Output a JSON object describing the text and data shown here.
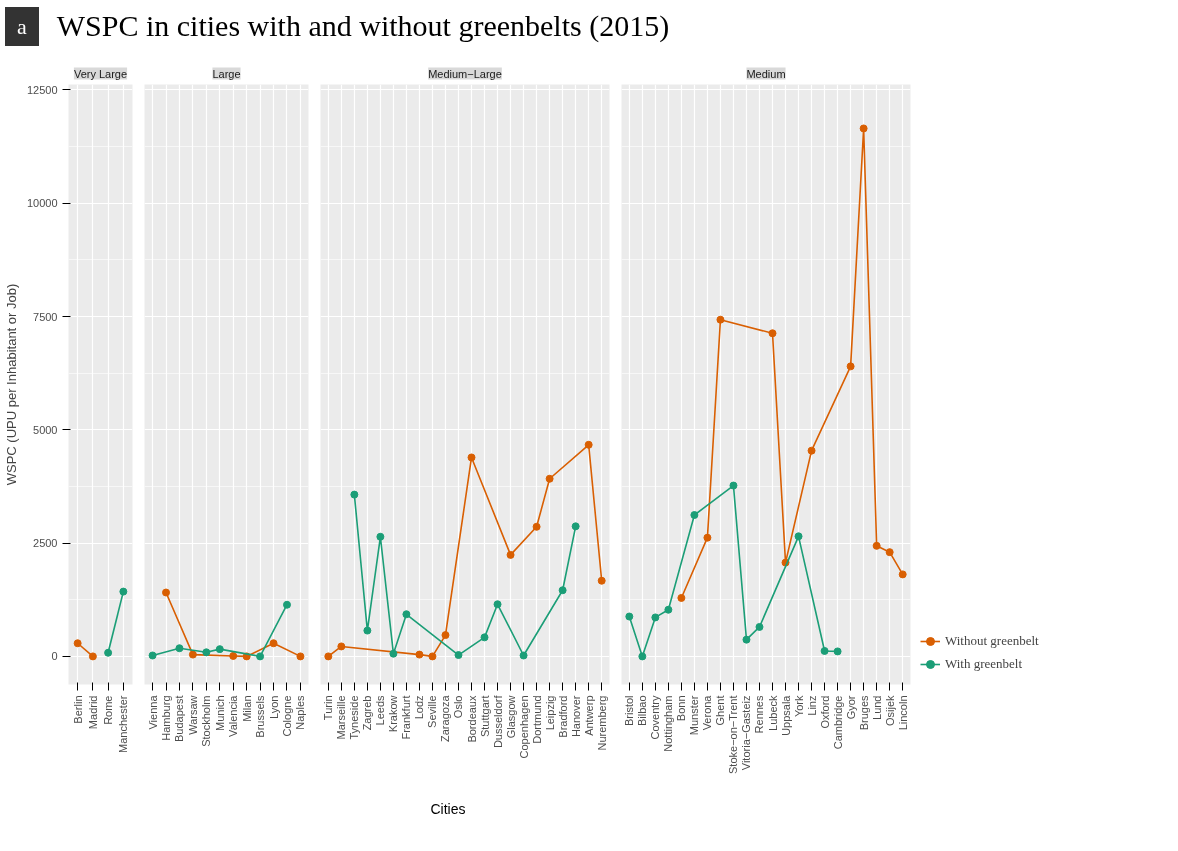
{
  "chart_data": [
    {
      "type": "line",
      "title": "WSPC in cities with and without greenbelts (2015)",
      "annotations": [
        "a"
      ],
      "subtitle": "Very Large",
      "ylabel": "WSPC (UPU per Inhabitant or Job)",
      "categories": [
        "Berlin",
        "Madrid",
        "Rome",
        "Manchester"
      ],
      "series": [
        {
          "color": "#d95f02",
          "values": [
            290,
            0,
            null,
            null
          ]
        },
        {
          "color": "#1b9e77",
          "values": [
            null,
            null,
            80,
            1430
          ]
        }
      ],
      "ylim": [
        -620,
        12620
      ],
      "yticks": [
        0,
        2500,
        5000,
        7500,
        10000,
        12500
      ],
      "grid": true,
      "marker": "circle"
    },
    {
      "type": "line",
      "subtitle": "Large",
      "categories": [
        "Vienna",
        "Hamburg",
        "Budapest",
        "Warsaw",
        "Stockholm",
        "Munich",
        "Valencia",
        "Milan",
        "Brussels",
        "Lyon",
        "Cologne",
        "Naples"
      ],
      "series": [
        {
          "color": "#d95f02",
          "values": [
            null,
            1410,
            null,
            40,
            null,
            null,
            10,
            0,
            null,
            290,
            null,
            0
          ]
        },
        {
          "color": "#1b9e77",
          "values": [
            20,
            null,
            180,
            null,
            90,
            160,
            null,
            null,
            0,
            null,
            1140,
            null
          ]
        }
      ],
      "ylim": [
        -620,
        12620
      ],
      "yticks": [
        0,
        2500,
        5000,
        7500,
        10000,
        12500
      ],
      "grid": true,
      "marker": "circle",
      "tick_labels": "x"
    },
    {
      "type": "line",
      "subtitle": "Medium−Large",
      "xlabel": "Cities",
      "categories": [
        "Turin",
        "Marseille",
        "Tyneside",
        "Zagreb",
        "Leeds",
        "Krakow",
        "Frankfurt",
        "Lodz",
        "Seville",
        "Zaragoza",
        "Oslo",
        "Bordeaux",
        "Stuttgart",
        "Dusseldorf",
        "Glasgow",
        "Copenhagen",
        "Dortmund",
        "Leipzig",
        "Bradford",
        "Hanover",
        "Antwerp",
        "Nuremberg"
      ],
      "series": [
        {
          "color": "#d95f02",
          "values": [
            0,
            220,
            null,
            null,
            null,
            null,
            null,
            40,
            0,
            470,
            null,
            4390,
            null,
            null,
            2240,
            null,
            2860,
            3920,
            null,
            null,
            4670,
            1670
          ]
        },
        {
          "color": "#1b9e77",
          "values": [
            null,
            null,
            3570,
            570,
            2640,
            60,
            930,
            null,
            null,
            null,
            30,
            null,
            420,
            1150,
            null,
            20,
            null,
            null,
            1460,
            2870,
            null,
            null
          ]
        }
      ],
      "ylim": [
        -620,
        12620
      ],
      "yticks": [
        0,
        2500,
        5000,
        7500,
        10000,
        12500
      ],
      "grid": true,
      "marker": "circle",
      "tick_labels": "x"
    },
    {
      "type": "line",
      "subtitle": "Medium",
      "categories": [
        "Bristol",
        "Bilbao",
        "Coventry",
        "Nottingham",
        "Bonn",
        "Munster",
        "Verona",
        "Ghent",
        "Stoke−on−Trent",
        "Vitoria−Gasteiz",
        "Rennes",
        "Lubeck",
        "Uppsala",
        "York",
        "Linz",
        "Oxford",
        "Cambridge",
        "Gyor",
        "Bruges",
        "Lund",
        "Osijek",
        "Lincoln"
      ],
      "series": [
        {
          "name": "Without greenbelt",
          "color": "#d95f02",
          "values": [
            null,
            null,
            null,
            null,
            1290,
            null,
            2620,
            7430,
            null,
            null,
            null,
            7130,
            2070,
            null,
            4540,
            null,
            null,
            6400,
            11650,
            2440,
            2300,
            1810
          ]
        },
        {
          "name": "With greenbelt",
          "color": "#1b9e77",
          "values": [
            880,
            0,
            860,
            1030,
            null,
            3120,
            null,
            null,
            3770,
            370,
            650,
            null,
            null,
            2650,
            null,
            120,
            110,
            null,
            null,
            null,
            null,
            null
          ]
        }
      ],
      "ylim": [
        -620,
        12620
      ],
      "yticks": [
        0,
        2500,
        5000,
        7500,
        10000,
        12500
      ],
      "grid": true,
      "marker": "circle",
      "legend": "right",
      "tick_labels": "x"
    }
  ]
}
